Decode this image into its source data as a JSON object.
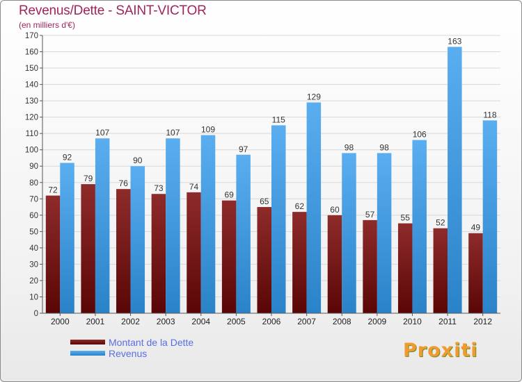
{
  "chart_data": {
    "type": "bar",
    "title": "Revenus/Dette - SAINT-VICTOR",
    "subtitle": "(en milliers d'€)",
    "categories": [
      "2000",
      "2001",
      "2002",
      "2003",
      "2004",
      "2005",
      "2006",
      "2007",
      "2008",
      "2009",
      "2010",
      "2011",
      "2012"
    ],
    "series": [
      {
        "name": "Montant de la Dette",
        "color": "#7a1a1a",
        "values": [
          72,
          79,
          76,
          73,
          74,
          69,
          65,
          62,
          60,
          57,
          55,
          52,
          49
        ]
      },
      {
        "name": "Revenus",
        "color": "#3f9ce0",
        "values": [
          92,
          107,
          90,
          107,
          109,
          97,
          115,
          129,
          98,
          98,
          106,
          163,
          118
        ]
      }
    ],
    "ylim": [
      0,
      170
    ],
    "ytick_step": 10,
    "grid": true,
    "legend_position": "bottom-left"
  },
  "brand": {
    "text": "Proxiti"
  }
}
